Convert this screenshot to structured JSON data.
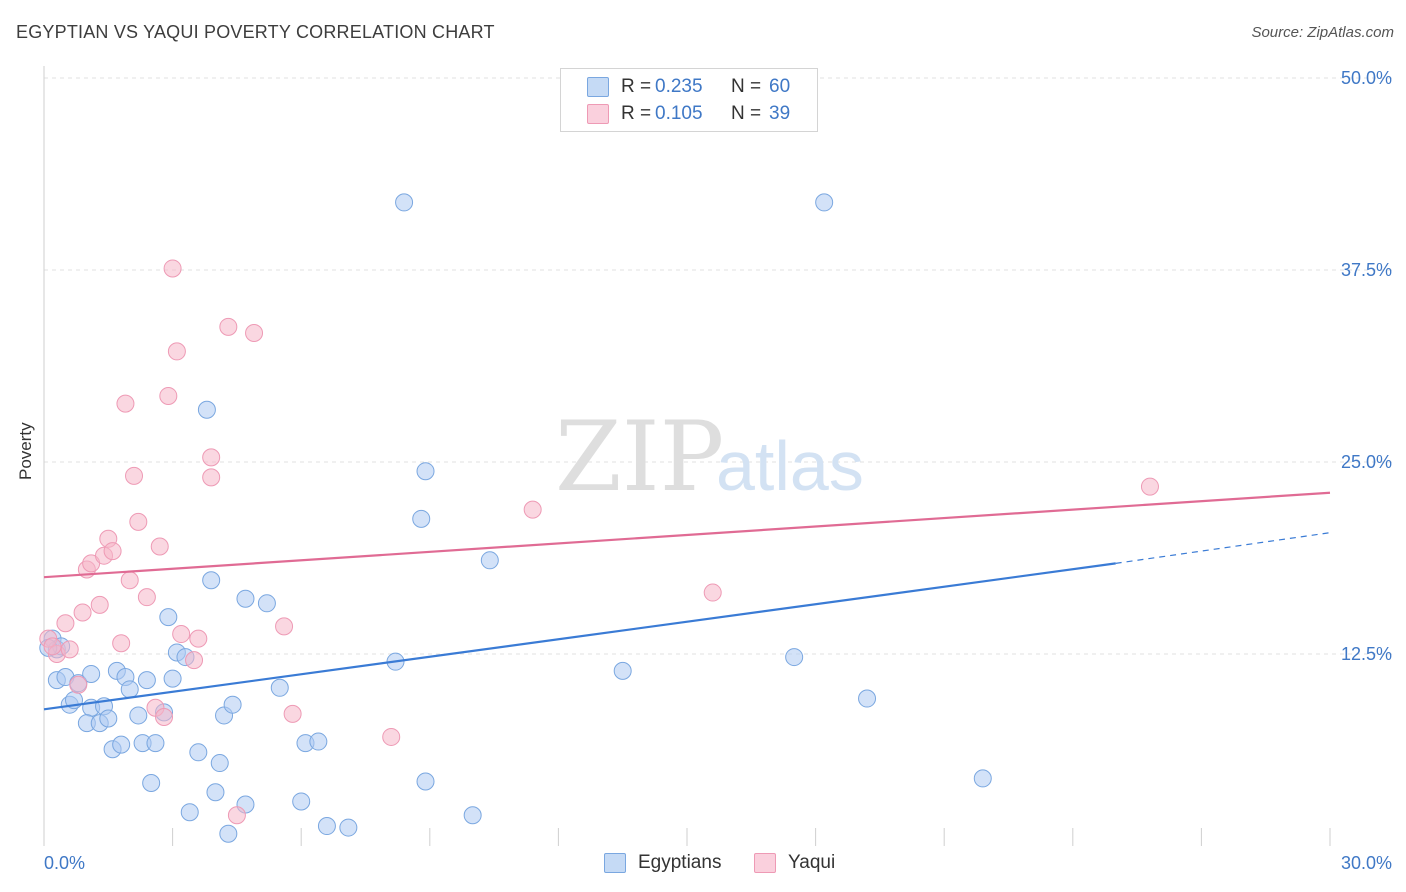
{
  "header": {
    "title": "EGYPTIAN VS YAQUI POVERTY CORRELATION CHART",
    "source": "Source: ZipAtlas.com"
  },
  "legend": {
    "rows": [
      {
        "r_label": "R =",
        "r_value": "0.235",
        "n_label": "N =",
        "n_value": "60",
        "color": "#aecbf2"
      },
      {
        "r_label": "R =",
        "r_value": "0.105",
        "n_label": "N =",
        "n_value": "39",
        "color": "#f6b6c9"
      }
    ]
  },
  "bottom_legend": [
    {
      "label": "Egyptians",
      "color": "#aecbf2"
    },
    {
      "label": "Yaqui",
      "color": "#f6b6c9"
    }
  ],
  "watermark": {
    "part1": "ZIP",
    "part2": "atlas"
  },
  "chart_data": {
    "type": "scatter",
    "title": "EGYPTIAN VS YAQUI POVERTY CORRELATION CHART",
    "xlabel": "",
    "ylabel": "Poverty",
    "xlim": [
      0,
      30
    ],
    "ylim": [
      0,
      50
    ],
    "x_tick_labels": [
      "0.0%",
      "30.0%"
    ],
    "y_ticks": [
      12.5,
      25.0,
      37.5,
      50.0
    ],
    "y_tick_labels": [
      "12.5%",
      "25.0%",
      "37.5%",
      "50.0%"
    ],
    "grid": true,
    "series": [
      {
        "name": "Egyptians",
        "color": "#3a7bd5",
        "fill": "#aecbf2",
        "trend": {
          "x0": 0,
          "y0": 8.9,
          "x1": 25,
          "y1": 18.4,
          "dash_to": 30,
          "dash_y": 20.4
        },
        "points": [
          [
            0.2,
            13.5
          ],
          [
            0.3,
            12.8
          ],
          [
            0.4,
            13.0
          ],
          [
            0.3,
            10.8
          ],
          [
            0.5,
            11.0
          ],
          [
            0.6,
            9.2
          ],
          [
            0.7,
            9.5
          ],
          [
            0.8,
            10.6
          ],
          [
            1.1,
            11.2
          ],
          [
            1.1,
            9.0
          ],
          [
            1.0,
            8.0
          ],
          [
            1.3,
            8.0
          ],
          [
            1.4,
            9.1
          ],
          [
            1.5,
            8.3
          ],
          [
            1.6,
            6.3
          ],
          [
            1.8,
            6.6
          ],
          [
            1.7,
            11.4
          ],
          [
            1.9,
            11.0
          ],
          [
            2.0,
            10.2
          ],
          [
            2.2,
            8.5
          ],
          [
            2.3,
            6.7
          ],
          [
            2.4,
            10.8
          ],
          [
            2.5,
            4.1
          ],
          [
            2.6,
            6.7
          ],
          [
            2.8,
            8.7
          ],
          [
            2.9,
            14.9
          ],
          [
            3.0,
            10.9
          ],
          [
            3.1,
            12.6
          ],
          [
            3.3,
            12.3
          ],
          [
            3.4,
            2.2
          ],
          [
            3.6,
            6.1
          ],
          [
            3.8,
            28.4
          ],
          [
            3.9,
            17.3
          ],
          [
            4.0,
            3.5
          ],
          [
            4.1,
            5.4
          ],
          [
            4.2,
            8.5
          ],
          [
            4.3,
            0.8
          ],
          [
            4.4,
            9.2
          ],
          [
            4.7,
            2.7
          ],
          [
            4.7,
            16.1
          ],
          [
            5.2,
            15.8
          ],
          [
            5.5,
            10.3
          ],
          [
            6.0,
            2.9
          ],
          [
            6.1,
            6.7
          ],
          [
            6.4,
            6.8
          ],
          [
            6.6,
            1.3
          ],
          [
            7.1,
            1.2
          ],
          [
            8.2,
            12.0
          ],
          [
            8.4,
            41.9
          ],
          [
            8.8,
            21.3
          ],
          [
            8.9,
            24.4
          ],
          [
            8.9,
            4.2
          ],
          [
            10.0,
            2.0
          ],
          [
            10.4,
            18.6
          ],
          [
            13.5,
            11.4
          ],
          [
            17.5,
            12.3
          ],
          [
            18.2,
            41.9
          ],
          [
            19.2,
            9.6
          ],
          [
            21.9,
            4.4
          ],
          [
            0.1,
            12.9
          ]
        ]
      },
      {
        "name": "Yaqui",
        "color": "#e06b94",
        "fill": "#f6b6c9",
        "trend": {
          "x0": 0,
          "y0": 17.5,
          "x1": 30,
          "y1": 23.0
        },
        "points": [
          [
            0.1,
            13.5
          ],
          [
            0.3,
            12.5
          ],
          [
            0.5,
            14.5
          ],
          [
            0.6,
            12.8
          ],
          [
            0.8,
            10.5
          ],
          [
            0.9,
            15.2
          ],
          [
            1.0,
            18.0
          ],
          [
            1.1,
            18.4
          ],
          [
            1.3,
            15.7
          ],
          [
            1.4,
            18.9
          ],
          [
            1.5,
            20.0
          ],
          [
            1.6,
            19.2
          ],
          [
            1.8,
            13.2
          ],
          [
            1.9,
            28.8
          ],
          [
            2.0,
            17.3
          ],
          [
            2.1,
            24.1
          ],
          [
            2.2,
            21.1
          ],
          [
            2.4,
            16.2
          ],
          [
            2.6,
            9.0
          ],
          [
            2.7,
            19.5
          ],
          [
            2.8,
            8.4
          ],
          [
            2.9,
            29.3
          ],
          [
            3.0,
            37.6
          ],
          [
            3.1,
            32.2
          ],
          [
            3.2,
            13.8
          ],
          [
            3.5,
            12.1
          ],
          [
            3.6,
            13.5
          ],
          [
            3.9,
            25.3
          ],
          [
            3.9,
            24.0
          ],
          [
            4.3,
            33.8
          ],
          [
            4.5,
            2.0
          ],
          [
            4.9,
            33.4
          ],
          [
            5.6,
            14.3
          ],
          [
            5.8,
            8.6
          ],
          [
            8.1,
            7.1
          ],
          [
            11.4,
            21.9
          ],
          [
            15.6,
            16.5
          ],
          [
            25.8,
            23.4
          ],
          [
            0.2,
            13.0
          ]
        ]
      }
    ]
  }
}
